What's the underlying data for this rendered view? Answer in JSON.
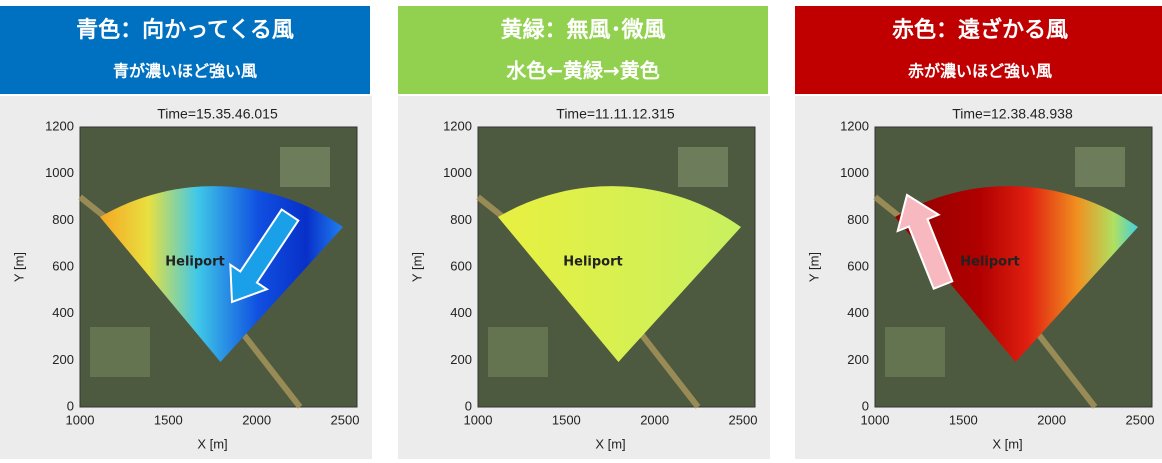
{
  "panels": [
    {
      "title": "青色：向かってくる風",
      "subtitle": "青が濃いほど強い風",
      "color": "#0070c0",
      "time": "Time=15.35.46.015",
      "site": "Heliport",
      "x_label": "X [m]",
      "y_label": "Y [m]",
      "xticks": [
        1000,
        1500,
        2000,
        2500
      ],
      "yticks": [
        0,
        200,
        400,
        600,
        800,
        1000,
        1200
      ]
    },
    {
      "title": "黄緑：無風･微風",
      "subtitle": "水色←黄緑→黄色",
      "color": "#92d050",
      "time": "Time=11.11.12.315",
      "site": "Heliport",
      "x_label": "X [m]",
      "y_label": "Y [m]",
      "xticks": [
        1000,
        1500,
        2000,
        2500
      ],
      "yticks": [
        0,
        200,
        400,
        600,
        800,
        1000,
        1200
      ]
    },
    {
      "title": "赤色：遠ざかる風",
      "subtitle": "赤が濃いほど強い風",
      "color": "#c00000",
      "time": "Time=12.38.48.938",
      "site": "Heliport",
      "x_label": "X [m]",
      "y_label": "Y [m]",
      "xticks": [
        1000,
        1500,
        2000,
        2500
      ],
      "yticks": [
        0,
        200,
        400,
        600,
        800,
        1000,
        1200
      ]
    }
  ]
}
